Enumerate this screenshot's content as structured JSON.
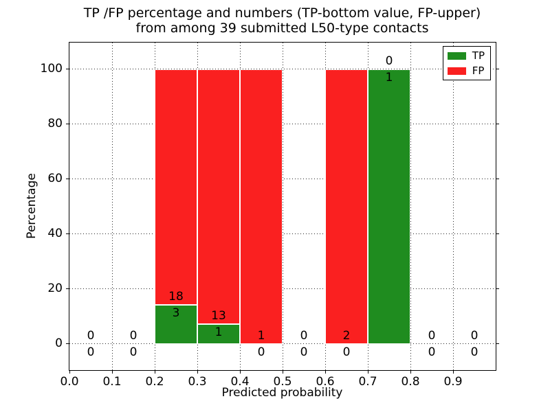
{
  "chart_data": {
    "type": "bar",
    "stacked": true,
    "title_line1": "TP /FP percentage and numbers (TP-bottom value, FP-upper)",
    "title_line2": "from among 39 submitted L50-type contacts",
    "xlabel": "Predicted probability",
    "ylabel": "Percentage",
    "total_contacts": 39,
    "xlim": [
      0.0,
      1.0
    ],
    "ylim": [
      -9.55,
      109.7
    ],
    "yticks": [
      0,
      20,
      40,
      60,
      80,
      100
    ],
    "ytick_labels": [
      "0",
      "20",
      "40",
      "60",
      "80",
      "100"
    ],
    "xticks": [
      0.0,
      0.1,
      0.2,
      0.3,
      0.4,
      0.5,
      0.6,
      0.7,
      0.8,
      0.9
    ],
    "xtick_labels": [
      "0.0",
      "0.1",
      "0.2",
      "0.3",
      "0.4",
      "0.5",
      "0.6",
      "0.7",
      "0.8",
      "0.9"
    ],
    "grid": "dotted",
    "colors": {
      "tp": "#1f8c1f",
      "fp": "#fa2020"
    },
    "legend": {
      "position": "upper right",
      "entries": [
        {
          "label": "TP",
          "color": "#1f8c1f"
        },
        {
          "label": "FP",
          "color": "#fa2020"
        }
      ]
    },
    "bins": [
      {
        "range": [
          0.0,
          0.1
        ],
        "tp": 0,
        "fp": 0,
        "tp_pct": 0,
        "fp_pct": 0
      },
      {
        "range": [
          0.1,
          0.2
        ],
        "tp": 0,
        "fp": 0,
        "tp_pct": 0,
        "fp_pct": 0
      },
      {
        "range": [
          0.2,
          0.3
        ],
        "tp": 3,
        "fp": 18,
        "tp_pct": 14.286,
        "fp_pct": 85.714
      },
      {
        "range": [
          0.3,
          0.4
        ],
        "tp": 1,
        "fp": 13,
        "tp_pct": 7.143,
        "fp_pct": 92.857
      },
      {
        "range": [
          0.4,
          0.5
        ],
        "tp": 0,
        "fp": 1,
        "tp_pct": 0,
        "fp_pct": 100
      },
      {
        "range": [
          0.5,
          0.6
        ],
        "tp": 0,
        "fp": 0,
        "tp_pct": 0,
        "fp_pct": 0
      },
      {
        "range": [
          0.6,
          0.7
        ],
        "tp": 0,
        "fp": 2,
        "tp_pct": 0,
        "fp_pct": 100
      },
      {
        "range": [
          0.7,
          0.8
        ],
        "tp": 1,
        "fp": 0,
        "tp_pct": 100,
        "fp_pct": 0
      },
      {
        "range": [
          0.8,
          0.9
        ],
        "tp": 0,
        "fp": 0,
        "tp_pct": 0,
        "fp_pct": 0
      },
      {
        "range": [
          0.9,
          1.0
        ],
        "tp": 0,
        "fp": 0,
        "tp_pct": 0,
        "fp_pct": 0
      }
    ]
  }
}
